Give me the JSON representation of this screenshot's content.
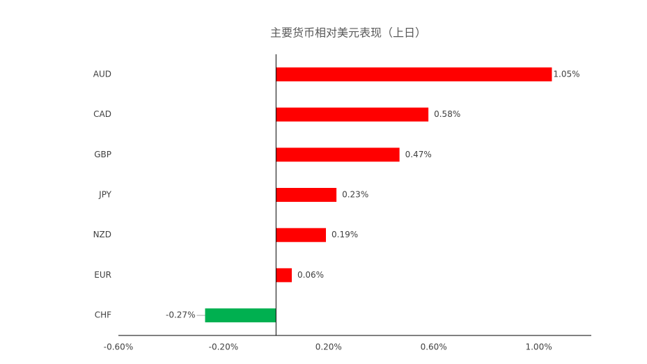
{
  "chart_data": {
    "type": "bar",
    "orientation": "horizontal",
    "title": "主要货币相对美元表现（上日）",
    "categories": [
      "AUD",
      "CAD",
      "GBP",
      "JPY",
      "NZD",
      "EUR",
      "CHF"
    ],
    "values": [
      1.05,
      0.58,
      0.47,
      0.23,
      0.19,
      0.06,
      -0.27
    ],
    "value_labels": [
      "1.05%",
      "0.58%",
      "0.47%",
      "0.23%",
      "0.19%",
      "0.06%",
      "-0.27%"
    ],
    "colors": [
      "#ff0000",
      "#ff0000",
      "#ff0000",
      "#ff0000",
      "#ff0000",
      "#ff0000",
      "#00b050"
    ],
    "xlim": [
      -0.6,
      1.2
    ],
    "xticks": [
      {
        "value": -0.6,
        "label": "-0.60%"
      },
      {
        "value": -0.2,
        "label": "-0.20%"
      },
      {
        "value": 0.2,
        "label": "0.20%"
      },
      {
        "value": 0.6,
        "label": "0.60%"
      },
      {
        "value": 1.0,
        "label": "1.00%"
      }
    ],
    "grid": false
  }
}
